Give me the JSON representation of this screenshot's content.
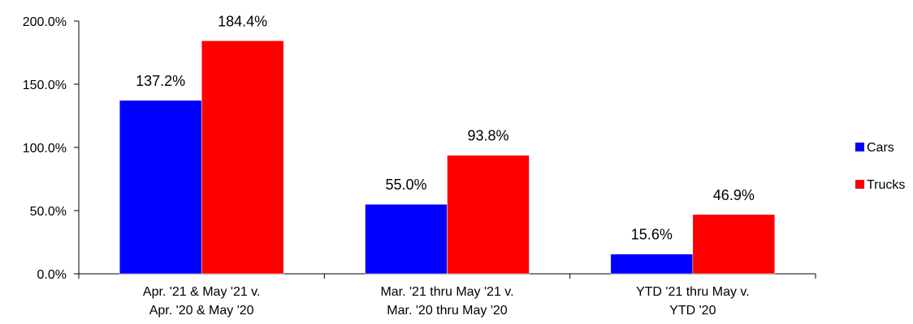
{
  "chart_data": {
    "type": "bar",
    "categories": [
      [
        "Apr. '21 & May '21 v.",
        "Apr. '20 & May '20"
      ],
      [
        "Mar. '21 thru May '21 v.",
        "Mar. '20 thru May '20"
      ],
      [
        "YTD '21 thru May v.",
        "YTD '20"
      ]
    ],
    "series": [
      {
        "name": "Cars",
        "values": [
          137.2,
          55.0,
          15.6
        ],
        "labels": [
          "137.2%",
          "55.0%",
          "15.6%"
        ],
        "color": "#0000ff"
      },
      {
        "name": "Trucks",
        "values": [
          184.4,
          93.8,
          46.9
        ],
        "labels": [
          "184.4%",
          "93.8%",
          "46.9%"
        ],
        "color": "#ff0000"
      }
    ],
    "yticks": [
      0,
      50,
      100,
      150,
      200
    ],
    "ytick_labels": [
      "0.0%",
      "50.0%",
      "100.0%",
      "150.0%",
      "200.0%"
    ],
    "ylim": [
      0,
      200
    ],
    "grid": false,
    "legend_position": "right"
  }
}
